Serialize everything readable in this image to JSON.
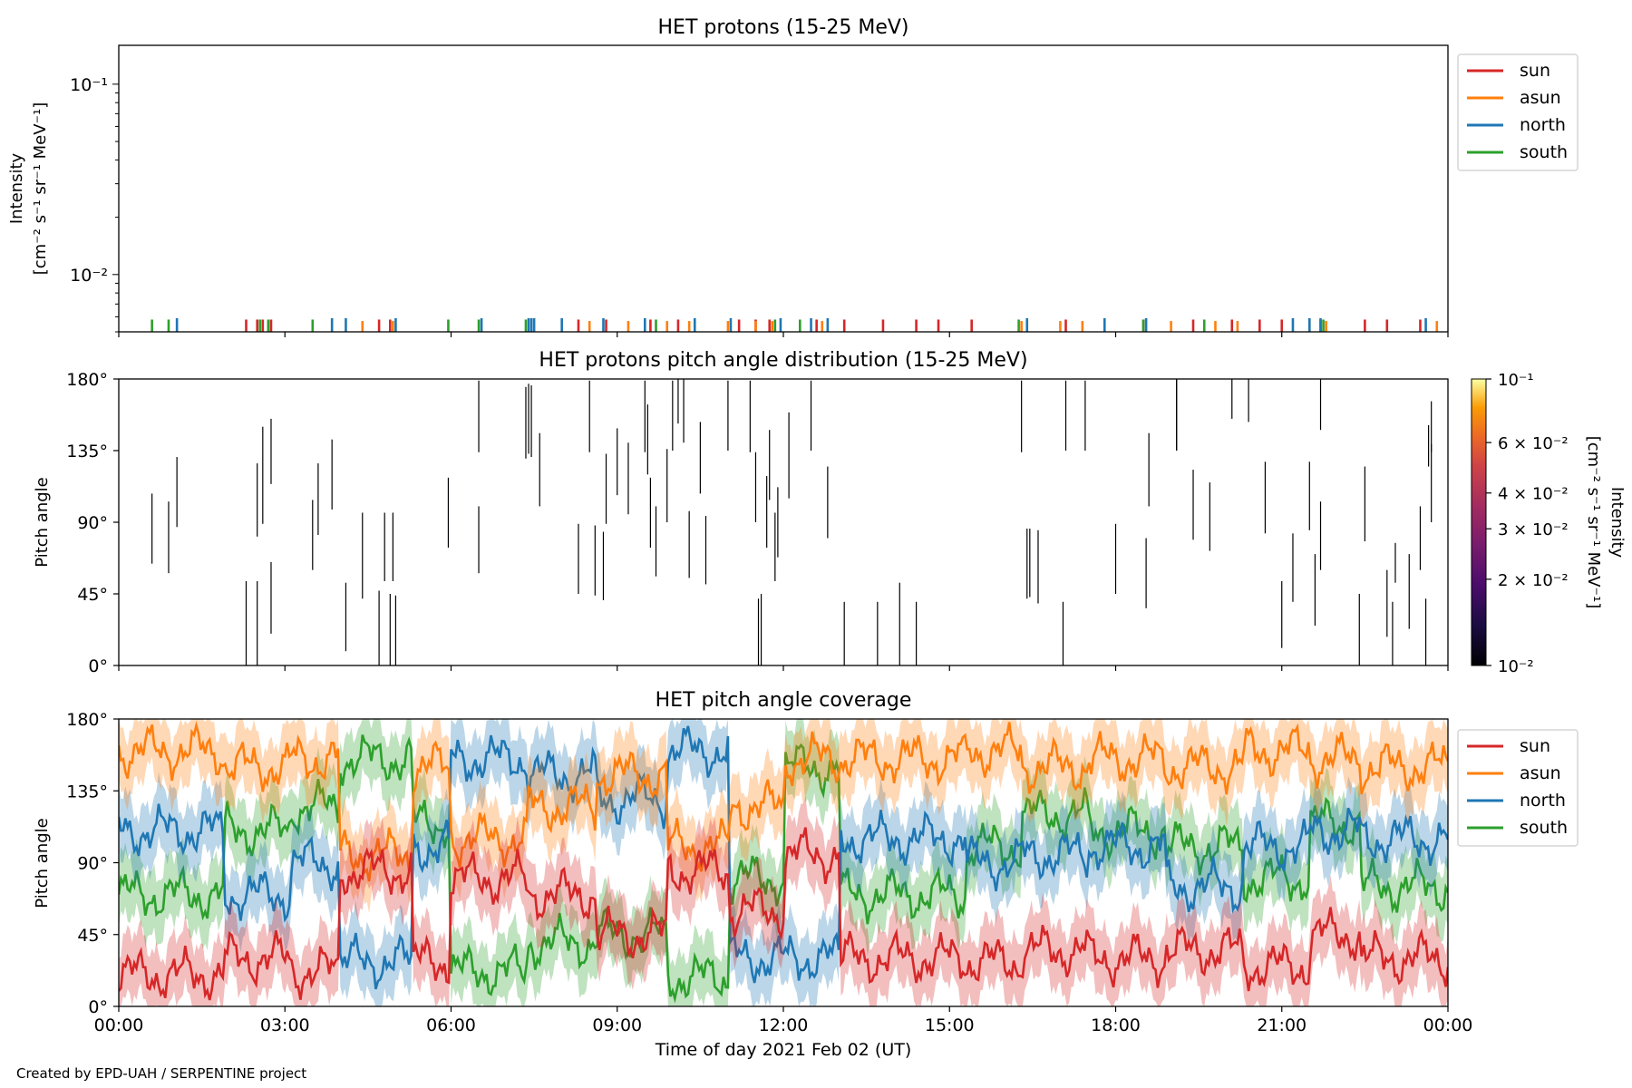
{
  "figure": {
    "xlabel": "Time of day 2021 Feb 02 (UT)",
    "credit": "Created by EPD-UAH / SERPENTINE project",
    "xtick_labels": [
      "00:00",
      "03:00",
      "06:00",
      "09:00",
      "12:00",
      "15:00",
      "18:00",
      "21:00",
      "00:00"
    ]
  },
  "colors": {
    "sun": "#d62728",
    "asun": "#ff7f0e",
    "north": "#1f77b4",
    "south": "#2ca02c"
  },
  "chart_data": [
    {
      "type": "line",
      "title": "HET protons (15-25 MeV)",
      "ylabel_line1": "Intensity",
      "ylabel_line2": "[cm⁻² s⁻¹ sr⁻¹ MeV⁻¹]",
      "yscale": "log",
      "ylim": [
        0.005,
        0.16
      ],
      "ytick_labels": [
        {
          "value": 0.1,
          "label": "10⁻¹"
        },
        {
          "value": 0.01,
          "label": "10⁻²"
        }
      ],
      "xlim_hours": [
        0,
        24
      ],
      "legend": {
        "placement": "outside-top-right",
        "entries": [
          "sun",
          "asun",
          "north",
          "south"
        ]
      },
      "series": [
        {
          "name": "sun",
          "x_hours": [
            2.3,
            2.5,
            2.6,
            2.75,
            4.7,
            4.9,
            8.3,
            8.8,
            9.6,
            10.1,
            11.2,
            11.5,
            11.75,
            12.6,
            13.1,
            13.8,
            14.4,
            14.8,
            15.4,
            17.1,
            18.5,
            19.4,
            20.1,
            20.6,
            21.0,
            21.7,
            22.5,
            22.9,
            23.5
          ],
          "y": [
            0.0058,
            0.0058,
            0.0058,
            0.0058,
            0.0058,
            0.0058,
            0.0058,
            0.0058,
            0.0058,
            0.0058,
            0.0058,
            0.0058,
            0.0058,
            0.0058,
            0.0058,
            0.0058,
            0.0058,
            0.0058,
            0.0058,
            0.0058,
            0.0058,
            0.0058,
            0.0058,
            0.0058,
            0.0058,
            0.0058,
            0.0058,
            0.0058,
            0.0058
          ]
        },
        {
          "name": "asun",
          "x_hours": [
            2.7,
            4.4,
            4.95,
            8.5,
            9.2,
            9.9,
            10.3,
            11.0,
            11.5,
            11.8,
            12.7,
            16.3,
            17.0,
            17.4,
            19.0,
            19.8,
            20.2,
            21.5,
            21.8,
            23.8
          ],
          "y": [
            0.0057,
            0.0057,
            0.0057,
            0.0057,
            0.0057,
            0.0057,
            0.0057,
            0.0057,
            0.0057,
            0.0057,
            0.0057,
            0.0057,
            0.0057,
            0.0057,
            0.0057,
            0.0057,
            0.0057,
            0.0057,
            0.0057,
            0.0057
          ]
        },
        {
          "name": "north",
          "x_hours": [
            1.05,
            3.85,
            4.1,
            5.0,
            6.55,
            7.4,
            7.45,
            7.5,
            8.0,
            8.75,
            9.5,
            10.4,
            11.05,
            11.95,
            12.5,
            12.8,
            16.4,
            17.8,
            18.55,
            21.2,
            21.5,
            21.7,
            23.6
          ],
          "y": [
            0.0059,
            0.0059,
            0.0059,
            0.0059,
            0.0059,
            0.0059,
            0.0059,
            0.0059,
            0.0059,
            0.0059,
            0.0059,
            0.0059,
            0.0059,
            0.0059,
            0.0059,
            0.0059,
            0.0059,
            0.0059,
            0.0059,
            0.0059,
            0.0059,
            0.0059,
            0.0059
          ]
        },
        {
          "name": "south",
          "x_hours": [
            0.6,
            0.9,
            2.55,
            2.7,
            3.5,
            5.95,
            6.5,
            7.35,
            9.7,
            11.85,
            12.3,
            16.25,
            18.5,
            19.6,
            21.75
          ],
          "y": [
            0.0058,
            0.0058,
            0.0058,
            0.0058,
            0.0058,
            0.0058,
            0.0058,
            0.0058,
            0.0058,
            0.0058,
            0.0058,
            0.0058,
            0.0058,
            0.0058,
            0.0058
          ]
        }
      ]
    },
    {
      "type": "heatmap",
      "title": "HET protons pitch angle distribution (15-25 MeV)",
      "ylabel": "Pitch angle",
      "ylim": [
        0,
        180
      ],
      "ytick_labels": [
        "0°",
        "45°",
        "90°",
        "135°",
        "180°"
      ],
      "colorbar": {
        "colormap": "inferno",
        "scale": "log",
        "range": [
          0.01,
          0.1
        ],
        "label_line1": "Intensity",
        "label_line2": "[cm⁻² s⁻¹ sr⁻¹ MeV⁻¹]",
        "ticks": [
          {
            "value": 0.1,
            "label": "10⁻¹"
          },
          {
            "value": 0.06,
            "label": "6 × 10⁻²"
          },
          {
            "value": 0.04,
            "label": "4 × 10⁻²"
          },
          {
            "value": 0.03,
            "label": "3 × 10⁻²"
          },
          {
            "value": 0.02,
            "label": "2 × 10⁻²"
          },
          {
            "value": 0.01,
            "label": "10⁻²"
          }
        ]
      },
      "segments": [
        [
          0.6,
          64,
          108
        ],
        [
          0.9,
          58,
          103
        ],
        [
          1.05,
          87,
          131
        ],
        [
          2.3,
          0,
          53
        ],
        [
          2.5,
          0,
          53
        ],
        [
          2.5,
          81,
          127
        ],
        [
          2.6,
          89,
          150
        ],
        [
          2.75,
          20,
          65
        ],
        [
          2.75,
          114,
          155
        ],
        [
          3.5,
          60,
          104
        ],
        [
          3.6,
          82,
          127
        ],
        [
          3.85,
          98,
          142
        ],
        [
          4.1,
          9,
          52
        ],
        [
          4.4,
          42,
          96
        ],
        [
          4.7,
          0,
          47
        ],
        [
          4.8,
          53,
          96
        ],
        [
          4.9,
          0,
          45
        ],
        [
          4.95,
          53,
          96
        ],
        [
          5.0,
          0,
          44
        ],
        [
          5.95,
          74,
          118
        ],
        [
          6.5,
          134,
          179
        ],
        [
          6.5,
          58,
          100
        ],
        [
          7.35,
          130,
          175
        ],
        [
          7.4,
          133,
          177
        ],
        [
          7.45,
          131,
          176
        ],
        [
          7.6,
          100,
          146
        ],
        [
          8.3,
          45,
          89
        ],
        [
          8.5,
          134,
          179
        ],
        [
          8.6,
          44,
          88
        ],
        [
          8.75,
          41,
          84
        ],
        [
          8.8,
          89,
          133
        ],
        [
          9.0,
          107,
          149
        ],
        [
          9.2,
          95,
          140
        ],
        [
          9.5,
          134,
          179
        ],
        [
          9.55,
          120,
          164
        ],
        [
          9.6,
          74,
          118
        ],
        [
          9.7,
          56,
          100
        ],
        [
          9.9,
          90,
          136
        ],
        [
          10.0,
          135,
          179
        ],
        [
          10.1,
          152,
          180
        ],
        [
          10.2,
          140,
          180
        ],
        [
          10.3,
          55,
          97
        ],
        [
          10.5,
          108,
          153
        ],
        [
          10.6,
          51,
          94
        ],
        [
          11.0,
          135,
          179
        ],
        [
          11.4,
          134,
          179
        ],
        [
          11.5,
          90,
          134
        ],
        [
          11.55,
          0,
          42
        ],
        [
          11.6,
          0,
          45
        ],
        [
          11.7,
          74,
          119
        ],
        [
          11.75,
          104,
          148
        ],
        [
          11.85,
          53,
          96
        ],
        [
          11.9,
          68,
          112
        ],
        [
          12.1,
          105,
          159
        ],
        [
          12.5,
          135,
          179
        ],
        [
          12.8,
          80,
          125
        ],
        [
          13.1,
          0,
          40
        ],
        [
          13.7,
          0,
          40
        ],
        [
          14.1,
          0,
          52
        ],
        [
          14.4,
          0,
          40
        ],
        [
          16.3,
          134,
          179
        ],
        [
          16.4,
          42,
          86
        ],
        [
          16.45,
          43,
          86
        ],
        [
          16.6,
          39,
          85
        ],
        [
          17.05,
          0,
          40
        ],
        [
          17.1,
          135,
          179
        ],
        [
          17.45,
          135,
          179
        ],
        [
          18.0,
          45,
          89
        ],
        [
          18.55,
          36,
          80
        ],
        [
          18.6,
          100,
          146
        ],
        [
          19.1,
          135,
          180
        ],
        [
          19.1,
          135,
          180
        ],
        [
          19.4,
          79,
          123
        ],
        [
          19.7,
          72,
          115
        ],
        [
          20.1,
          155,
          180
        ],
        [
          20.4,
          153,
          180
        ],
        [
          20.7,
          83,
          128
        ],
        [
          21.0,
          11,
          53
        ],
        [
          21.2,
          40,
          83
        ],
        [
          21.5,
          85,
          128
        ],
        [
          21.6,
          25,
          70
        ],
        [
          21.7,
          60,
          103
        ],
        [
          21.7,
          148,
          180
        ],
        [
          22.4,
          0,
          45
        ],
        [
          22.5,
          78,
          125
        ],
        [
          22.9,
          18,
          60
        ],
        [
          23.0,
          0,
          40
        ],
        [
          23.05,
          52,
          77
        ],
        [
          23.3,
          23,
          70
        ],
        [
          23.5,
          60,
          100
        ],
        [
          23.6,
          0,
          42
        ],
        [
          23.65,
          125,
          151
        ],
        [
          23.7,
          90,
          139
        ],
        [
          23.7,
          134,
          166
        ]
      ]
    },
    {
      "type": "area",
      "title": "HET pitch angle coverage",
      "ylabel": "Pitch angle",
      "ylim": [
        0,
        180
      ],
      "ytick_labels": [
        "0°",
        "45°",
        "90°",
        "135°",
        "180°"
      ],
      "xlim_hours": [
        0,
        24
      ],
      "legend": {
        "placement": "outside-top-right",
        "entries": [
          "sun",
          "asun",
          "north",
          "south"
        ]
      },
      "band_halfwidth_deg": 20,
      "regimes": [
        {
          "x": [
            0,
            1.9
          ],
          "sun": 20,
          "asun": 160,
          "north": 110,
          "south": 70
        },
        {
          "x": [
            1.9,
            3.1
          ],
          "sun": 30,
          "asun": 150,
          "north": 70,
          "south": 110
        },
        {
          "x": [
            3.1,
            4.0
          ],
          "sun": 22,
          "asun": 155,
          "north": 90,
          "south": 125
        },
        {
          "x": [
            4.0,
            5.3
          ],
          "sun": 85,
          "asun": 95,
          "north": 28,
          "south": 155
        },
        {
          "x": [
            5.3,
            6.0
          ],
          "sun": 28,
          "asun": 150,
          "north": 100,
          "south": 115
        },
        {
          "x": [
            6.0,
            7.4
          ],
          "sun": 80,
          "asun": 105,
          "north": 155,
          "south": 22
        },
        {
          "x": [
            7.4,
            8.6
          ],
          "sun": 70,
          "asun": 125,
          "north": 145,
          "south": 40
        },
        {
          "x": [
            8.6,
            9.9
          ],
          "sun": 45,
          "asun": 145,
          "north": 130,
          "south": 45
        },
        {
          "x": [
            9.9,
            11.0
          ],
          "sun": 85,
          "asun": 100,
          "north": 160,
          "south": 18
        },
        {
          "x": [
            11.0,
            12.0
          ],
          "sun": 60,
          "asun": 125,
          "north": 30,
          "south": 80
        },
        {
          "x": [
            12.0,
            13.0
          ],
          "sun": 95,
          "asun": 155,
          "north": 30,
          "south": 150
        },
        {
          "x": [
            13.0,
            15.3
          ],
          "sun": 30,
          "asun": 155,
          "north": 105,
          "south": 70
        },
        {
          "x": [
            15.3,
            16.3
          ],
          "sun": 28,
          "asun": 160,
          "north": 90,
          "south": 100
        },
        {
          "x": [
            16.3,
            17.5
          ],
          "sun": 35,
          "asun": 150,
          "north": 95,
          "south": 120
        },
        {
          "x": [
            17.5,
            18.9
          ],
          "sun": 30,
          "asun": 155,
          "north": 100,
          "south": 110
        },
        {
          "x": [
            18.9,
            20.3
          ],
          "sun": 35,
          "asun": 150,
          "north": 75,
          "south": 100
        },
        {
          "x": [
            20.3,
            21.5
          ],
          "sun": 25,
          "asun": 160,
          "north": 100,
          "south": 80
        },
        {
          "x": [
            21.5,
            22.4
          ],
          "sun": 45,
          "asun": 155,
          "north": 110,
          "south": 115
        },
        {
          "x": [
            22.4,
            24.0
          ],
          "sun": 30,
          "asun": 150,
          "north": 105,
          "south": 75
        }
      ]
    }
  ]
}
